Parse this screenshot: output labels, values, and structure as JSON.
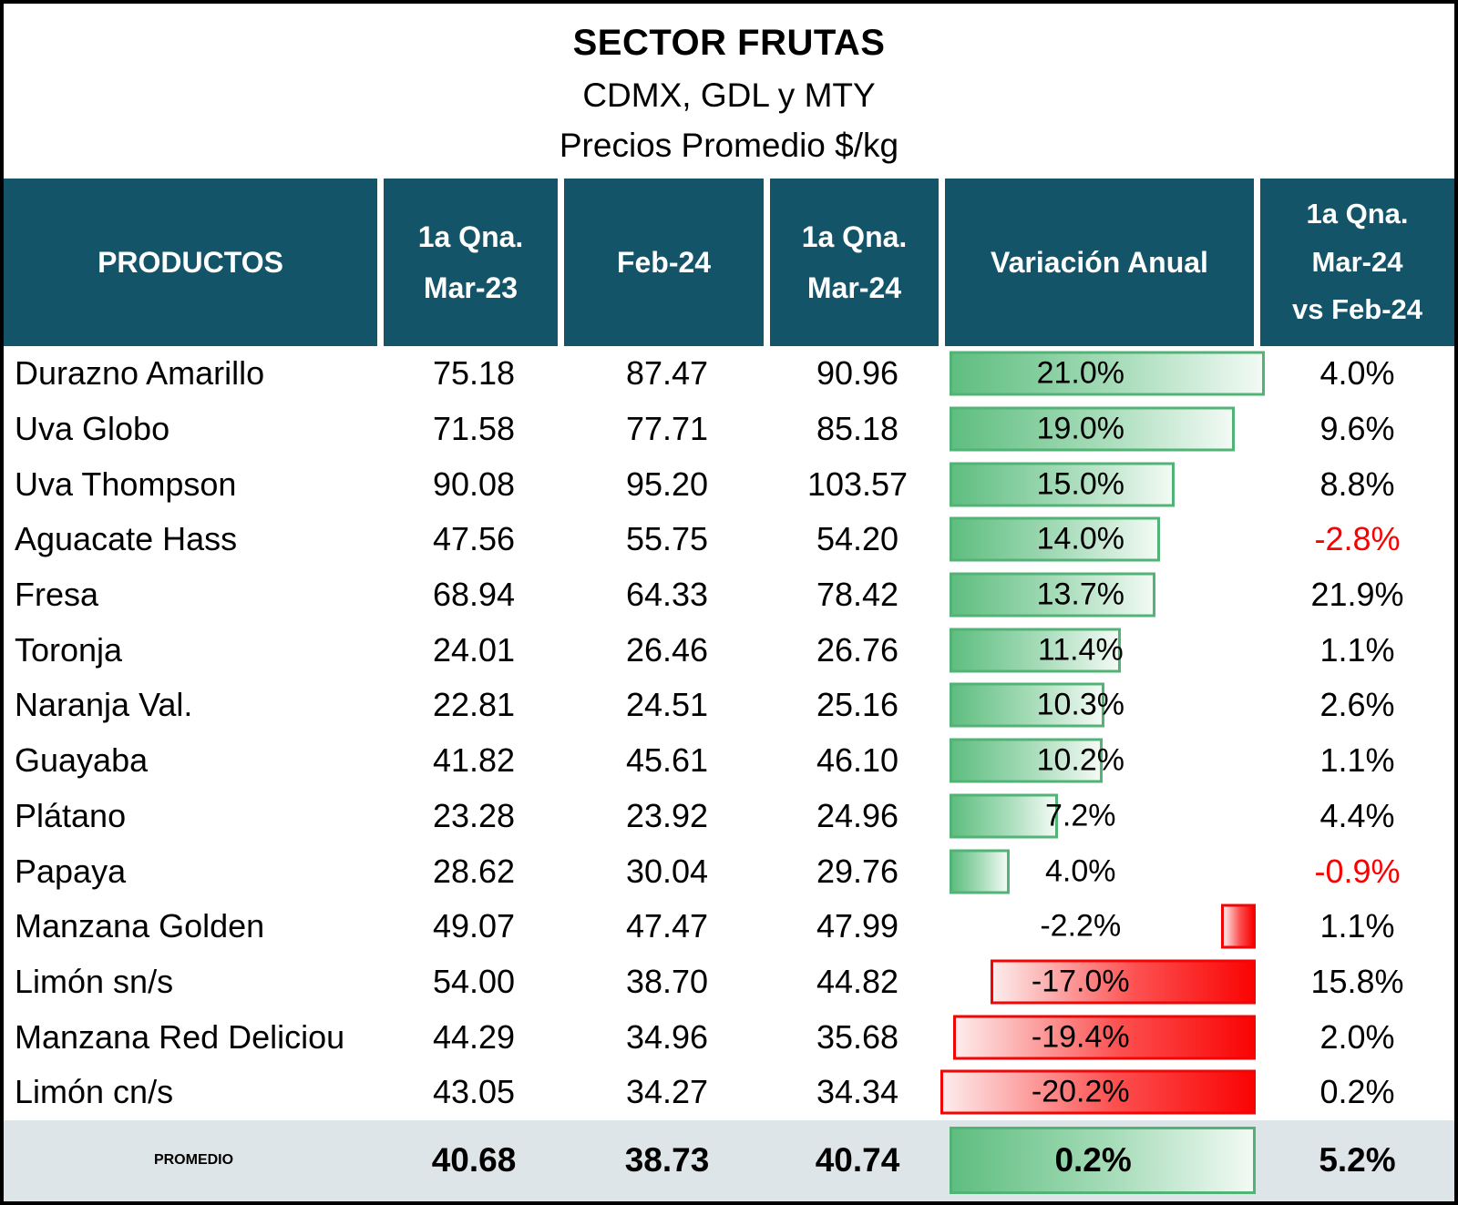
{
  "colors": {
    "header-bg": "#135469",
    "green-border": "#52b377",
    "red-border": "#f20505",
    "negative-text": "#fb0000",
    "promedio-bg": "#dee5e8"
  },
  "chart_data": {
    "type": "table",
    "title": "SECTOR FRUTAS",
    "subtitle1": "CDMX, GDL y MTY",
    "subtitle2": "Precios Promedio $/kg",
    "columns": {
      "productos": "PRODUCTOS",
      "mar23": "1a Qna.\nMar-23",
      "feb24": "Feb-24",
      "mar24": "1a Qna.\nMar-24",
      "variacion": "Variación Anual",
      "vs": "1a Qna.\nMar-24\nvs Feb-24"
    },
    "bar_axis": {
      "positive_max": 21.0,
      "negative_max": 20.2,
      "positive_color": "green",
      "negative_color": "red"
    },
    "rows": [
      {
        "producto": "Durazno Amarillo",
        "mar23": "75.18",
        "feb24": "87.47",
        "mar24": "90.96",
        "var_pct": 21.0,
        "var_label": "21.0%",
        "vs_label": "4.0%"
      },
      {
        "producto": "Uva Globo",
        "mar23": "71.58",
        "feb24": "77.71",
        "mar24": "85.18",
        "var_pct": 19.0,
        "var_label": "19.0%",
        "vs_label": "9.6%"
      },
      {
        "producto": "Uva Thompson",
        "mar23": "90.08",
        "feb24": "95.20",
        "mar24": "103.57",
        "var_pct": 15.0,
        "var_label": "15.0%",
        "vs_label": "8.8%"
      },
      {
        "producto": "Aguacate Hass",
        "mar23": "47.56",
        "feb24": "55.75",
        "mar24": "54.20",
        "var_pct": 14.0,
        "var_label": "14.0%",
        "vs_label": "-2.8%"
      },
      {
        "producto": "Fresa",
        "mar23": "68.94",
        "feb24": "64.33",
        "mar24": "78.42",
        "var_pct": 13.7,
        "var_label": "13.7%",
        "vs_label": "21.9%"
      },
      {
        "producto": "Toronja",
        "mar23": "24.01",
        "feb24": "26.46",
        "mar24": "26.76",
        "var_pct": 11.4,
        "var_label": "11.4%",
        "vs_label": "1.1%"
      },
      {
        "producto": "Naranja Val.",
        "mar23": "22.81",
        "feb24": "24.51",
        "mar24": "25.16",
        "var_pct": 10.3,
        "var_label": "10.3%",
        "vs_label": "2.6%"
      },
      {
        "producto": "Guayaba",
        "mar23": "41.82",
        "feb24": "45.61",
        "mar24": "46.10",
        "var_pct": 10.2,
        "var_label": "10.2%",
        "vs_label": "1.1%"
      },
      {
        "producto": "Plátano",
        "mar23": "23.28",
        "feb24": "23.92",
        "mar24": "24.96",
        "var_pct": 7.2,
        "var_label": "7.2%",
        "vs_label": "4.4%"
      },
      {
        "producto": "Papaya",
        "mar23": "28.62",
        "feb24": "30.04",
        "mar24": "29.76",
        "var_pct": 4.0,
        "var_label": "4.0%",
        "vs_label": "-0.9%"
      },
      {
        "producto": "Manzana Golden",
        "mar23": "49.07",
        "feb24": "47.47",
        "mar24": "47.99",
        "var_pct": -2.2,
        "var_label": "-2.2%",
        "vs_label": "1.1%"
      },
      {
        "producto": "Limón sn/s",
        "mar23": "54.00",
        "feb24": "38.70",
        "mar24": "44.82",
        "var_pct": -17.0,
        "var_label": "-17.0%",
        "vs_label": "15.8%"
      },
      {
        "producto": "Manzana Red Deliciou",
        "mar23": "44.29",
        "feb24": "34.96",
        "mar24": "35.68",
        "var_pct": -19.4,
        "var_label": "-19.4%",
        "vs_label": "2.0%"
      },
      {
        "producto": "Limón cn/s",
        "mar23": "43.05",
        "feb24": "34.27",
        "mar24": "34.34",
        "var_pct": -20.2,
        "var_label": "-20.2%",
        "vs_label": "0.2%"
      }
    ],
    "promedio": {
      "label": "PROMEDIO",
      "mar23": "40.68",
      "feb24": "38.73",
      "mar24": "40.74",
      "var_label": "0.2%",
      "var_bar": "full-width-green",
      "vs_label": "5.2%"
    }
  }
}
